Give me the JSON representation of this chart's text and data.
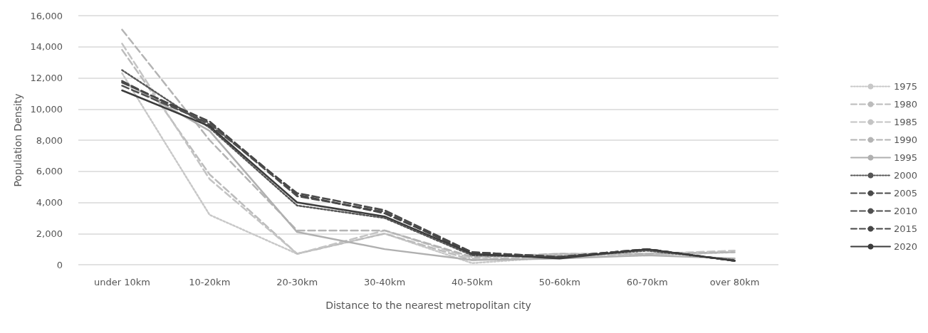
{
  "chart_data": {
    "type": "line",
    "xlabel": "Distance to the nearest metropolitan city",
    "ylabel": "Population Density",
    "categories": [
      "under 10km",
      "10-20km",
      "20-30km",
      "30-40km",
      "40-50km",
      "50-60km",
      "60-70km",
      "over 80km"
    ],
    "ylim": [
      0,
      16000
    ],
    "yticks": [
      {
        "value": 0,
        "label": "0"
      },
      {
        "value": 2000,
        "label": "2,000"
      },
      {
        "value": 4000,
        "label": "4,000"
      },
      {
        "value": 6000,
        "label": "6,000"
      },
      {
        "value": 8000,
        "label": "8,000"
      },
      {
        "value": 10000,
        "label": "10,000"
      },
      {
        "value": 12000,
        "label": "12,000"
      },
      {
        "value": 14000,
        "label": "14,000"
      },
      {
        "value": 16000,
        "label": "16,000"
      }
    ],
    "grid": "y",
    "legend": "right",
    "marker": "none",
    "series": [
      {
        "name": "1975",
        "color": "#c8c8c8",
        "line_style": "dotted",
        "values": [
          12300,
          3200,
          700,
          2000,
          100,
          500,
          600,
          800
        ]
      },
      {
        "name": "1980",
        "color": "#bcbcbc",
        "line_style": "dashed",
        "values": [
          13800,
          5800,
          700,
          2000,
          300,
          600,
          700,
          800
        ]
      },
      {
        "name": "1985",
        "color": "#c4c4c4",
        "line_style": "dashed",
        "values": [
          14200,
          5500,
          700,
          2200,
          400,
          700,
          700,
          900
        ]
      },
      {
        "name": "1990",
        "color": "#b4b4b4",
        "line_style": "dashed",
        "values": [
          15100,
          8000,
          2200,
          2200,
          500,
          700,
          700,
          800
        ]
      },
      {
        "name": "1995",
        "color": "#b0b0b0",
        "line_style": "solid",
        "values": [
          11800,
          8600,
          2100,
          1000,
          300,
          400,
          600,
          400
        ]
      },
      {
        "name": "2000",
        "color": "#555555",
        "line_style": "dotted",
        "values": [
          12500,
          8800,
          3800,
          3000,
          600,
          500,
          900,
          300
        ]
      },
      {
        "name": "2005",
        "color": "#4a4a4a",
        "line_style": "dashed",
        "values": [
          11800,
          9000,
          4600,
          3500,
          800,
          500,
          1000,
          250
        ]
      },
      {
        "name": "2010",
        "color": "#505050",
        "line_style": "dashed",
        "values": [
          11500,
          9100,
          4400,
          3400,
          700,
          500,
          1000,
          250
        ]
      },
      {
        "name": "2015",
        "color": "#474747",
        "line_style": "dashed",
        "values": [
          11700,
          9200,
          4500,
          3300,
          800,
          500,
          1000,
          250
        ]
      },
      {
        "name": "2020",
        "color": "#3c3c3c",
        "line_style": "solid",
        "values": [
          11200,
          8900,
          4000,
          3100,
          700,
          400,
          1000,
          250
        ]
      }
    ]
  }
}
